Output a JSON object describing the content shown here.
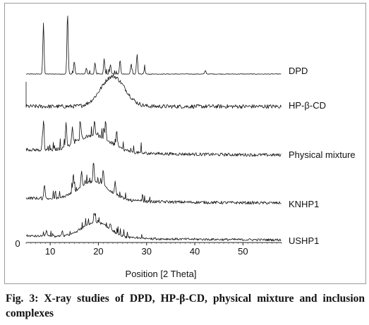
{
  "caption": {
    "label": "Fig. 3:",
    "text": "X-ray studies of DPD, HP-β-CD, physical mixture and inclusion complexes"
  },
  "chart_data": {
    "type": "line",
    "title": "",
    "xlabel": "Position [2 Theta]",
    "ylabel": "",
    "xlim": [
      5,
      58
    ],
    "xticks": [
      10,
      20,
      30,
      40,
      50
    ],
    "y_origin_label": "0",
    "grid": false,
    "legend": "series labels placed at right end of each trace",
    "series": [
      {
        "name": "DPD",
        "description_peaks": [
          {
            "x": 8.6,
            "h": 1.0
          },
          {
            "x": 13.6,
            "h": 1.2
          },
          {
            "x": 15.0,
            "h": 0.25
          },
          {
            "x": 17.5,
            "h": 0.12
          },
          {
            "x": 19.3,
            "h": 0.22
          },
          {
            "x": 21.2,
            "h": 0.3
          },
          {
            "x": 22.5,
            "h": 0.18
          },
          {
            "x": 24.5,
            "h": 0.28
          },
          {
            "x": 26.8,
            "h": 0.2
          },
          {
            "x": 28.0,
            "h": 0.32
          },
          {
            "x": 29.6,
            "h": 0.1
          },
          {
            "x": 42.2,
            "h": 0.07
          }
        ]
      },
      {
        "name": "HP-β-CD",
        "hump": {
          "center": 23,
          "width": 3.5,
          "height": 0.45
        }
      },
      {
        "name": "Physical mixture",
        "hump": {
          "center": 19,
          "width": 5,
          "height": 0.32
        },
        "peaks": [
          {
            "x": 8.6,
            "h": 0.55
          },
          {
            "x": 13.3,
            "h": 0.45
          },
          {
            "x": 14.6,
            "h": 0.35
          },
          {
            "x": 16.3,
            "h": 0.3
          },
          {
            "x": 19.2,
            "h": 0.3
          },
          {
            "x": 21.5,
            "h": 0.35
          },
          {
            "x": 23.8,
            "h": 0.3
          }
        ]
      },
      {
        "name": "KNHP1",
        "hump": {
          "center": 19,
          "width": 4.5,
          "height": 0.38
        },
        "peaks": [
          {
            "x": 8.8,
            "h": 0.3
          },
          {
            "x": 14.8,
            "h": 0.35
          },
          {
            "x": 16.5,
            "h": 0.32
          },
          {
            "x": 19.0,
            "h": 0.4
          },
          {
            "x": 21.0,
            "h": 0.3
          },
          {
            "x": 23.5,
            "h": 0.25
          }
        ]
      },
      {
        "name": "USHP1",
        "hump": {
          "center": 19.5,
          "width": 4,
          "height": 0.4
        },
        "peaks": [
          {
            "x": 9.2,
            "h": 0.15
          },
          {
            "x": 12.5,
            "h": 0.15
          },
          {
            "x": 19.2,
            "h": 0.25
          },
          {
            "x": 22.5,
            "h": 0.15
          }
        ]
      }
    ]
  }
}
